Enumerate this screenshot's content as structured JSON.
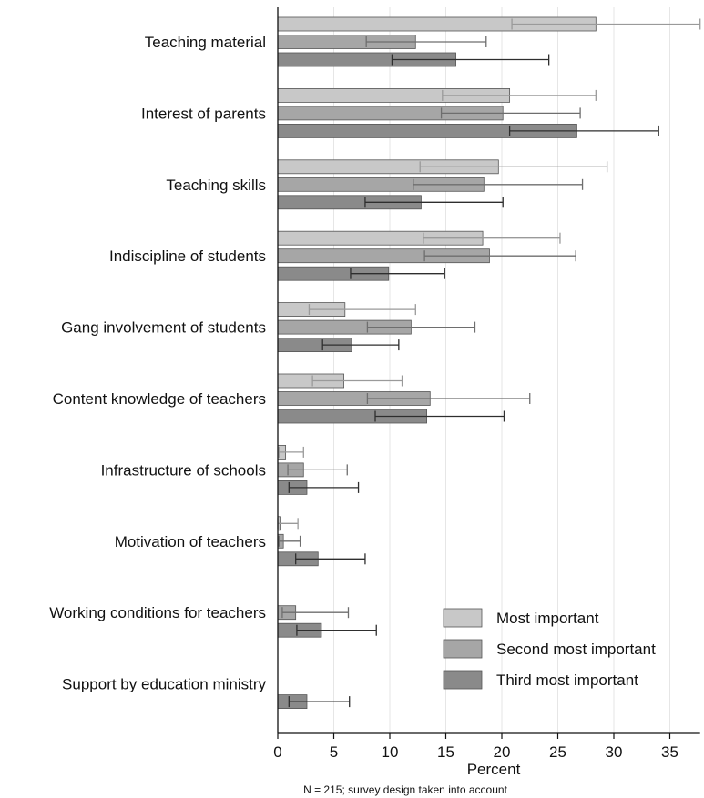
{
  "chart_data": {
    "type": "bar",
    "orientation": "horizontal",
    "categories": [
      "Teaching material",
      "Interest of parents",
      "Teaching skills",
      "Indiscipline of students",
      "Gang involvement of students",
      "Content knowledge of teachers",
      "Infrastructure of schools",
      "Motivation of teachers",
      "Working conditions for teachers",
      "Support by education ministry"
    ],
    "series": [
      {
        "name": "Most important",
        "color": "#c8c8c8",
        "errcolor": "#9a9a9a",
        "values": [
          28.4,
          20.7,
          19.7,
          18.3,
          6.0,
          5.9,
          0.7,
          0.2,
          0,
          0
        ],
        "ci_low": [
          20.9,
          14.7,
          12.7,
          13.0,
          2.8,
          3.1,
          0.1,
          0.0,
          null,
          null
        ],
        "ci_high": [
          37.7,
          28.4,
          29.4,
          25.2,
          12.3,
          11.1,
          2.3,
          1.8,
          null,
          null
        ]
      },
      {
        "name": "Second most important",
        "color": "#a6a6a6",
        "errcolor": "#6e6e6e",
        "values": [
          12.3,
          20.1,
          18.4,
          18.9,
          11.9,
          13.6,
          2.3,
          0.5,
          1.6,
          0
        ],
        "ci_low": [
          7.9,
          14.6,
          12.1,
          13.1,
          8.0,
          8.0,
          0.9,
          0.1,
          0.4,
          null
        ],
        "ci_high": [
          18.6,
          27.0,
          27.2,
          26.6,
          17.6,
          22.5,
          6.2,
          2.0,
          6.3,
          null
        ]
      },
      {
        "name": "Third most important",
        "color": "#8a8a8a",
        "errcolor": "#2e2e2e",
        "values": [
          15.9,
          26.7,
          12.8,
          9.9,
          6.6,
          13.3,
          2.6,
          3.6,
          3.9,
          2.6
        ],
        "ci_low": [
          10.2,
          20.7,
          7.8,
          6.5,
          4.0,
          8.7,
          1.0,
          1.6,
          1.7,
          1.0
        ],
        "ci_high": [
          24.2,
          34.0,
          20.1,
          14.9,
          10.8,
          20.2,
          7.2,
          7.8,
          8.8,
          6.4
        ]
      }
    ],
    "xlabel": "Percent",
    "ylabel": "",
    "xlim": [
      0,
      37.7
    ],
    "xticks": [
      0,
      5,
      10,
      15,
      20,
      25,
      30,
      35
    ],
    "grid": "vertical",
    "legend": "bottom-right",
    "note": "N = 215; survey design taken into account"
  }
}
